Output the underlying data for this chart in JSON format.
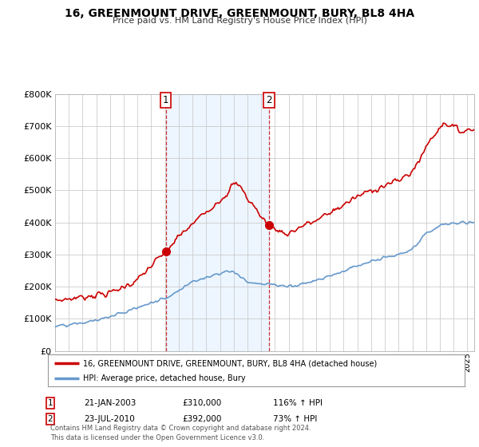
{
  "title": "16, GREENMOUNT DRIVE, GREENMOUNT, BURY, BL8 4HA",
  "subtitle": "Price paid vs. HM Land Registry's House Price Index (HPI)",
  "legend_line1": "16, GREENMOUNT DRIVE, GREENMOUNT, BURY, BL8 4HA (detached house)",
  "legend_line2": "HPI: Average price, detached house, Bury",
  "footer": "Contains HM Land Registry data © Crown copyright and database right 2024.\nThis data is licensed under the Open Government Licence v3.0.",
  "sale1_date": "21-JAN-2003",
  "sale1_price": "£310,000",
  "sale1_hpi": "116% ↑ HPI",
  "sale1_x": 2003.06,
  "sale2_date": "23-JUL-2010",
  "sale2_price": "£392,000",
  "sale2_hpi": "73% ↑ HPI",
  "sale2_x": 2010.56,
  "red_color": "#cc0000",
  "blue_color": "#6699cc",
  "fill_color": "#ddeeff",
  "plot_bg": "#ffffff",
  "ylim": [
    0,
    800000
  ],
  "xlim_start": 1995.0,
  "xlim_end": 2025.5,
  "sale1_y": 310000,
  "sale2_y": 392000
}
